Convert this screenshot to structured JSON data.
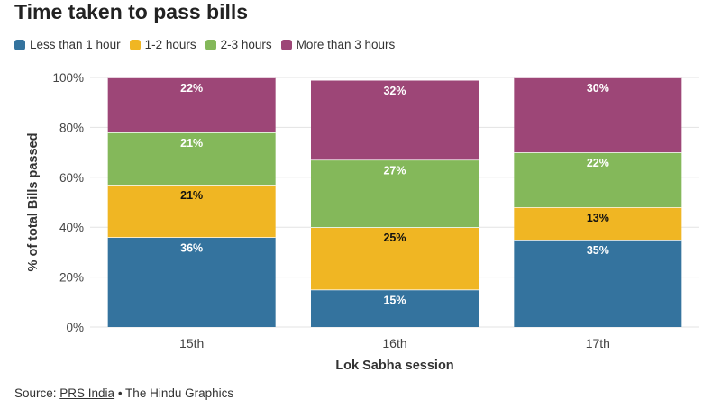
{
  "title": "Time taken to pass bills",
  "source": {
    "prefix": "Source: ",
    "link_text": "PRS India",
    "suffix": " • The Hindu Graphics"
  },
  "chart_data": {
    "type": "bar",
    "stacked": true,
    "categories": [
      "15th",
      "16th",
      "17th"
    ],
    "xlabel": "Lok Sabha session",
    "ylabel": "% of total Bills passed",
    "ylim": [
      0,
      100
    ],
    "yticks": [
      0,
      20,
      40,
      60,
      80,
      100
    ],
    "ytick_suffix": "%",
    "grid": true,
    "legend_position": "top-left",
    "series": [
      {
        "name": "Less than 1 hour",
        "color": "#34739e",
        "label_color": "#ffffff",
        "values": [
          36,
          15,
          35
        ]
      },
      {
        "name": "1-2 hours",
        "color": "#f0b623",
        "label_color": "#111111",
        "values": [
          21,
          25,
          13
        ]
      },
      {
        "name": "2-3 hours",
        "color": "#84b85a",
        "label_color": "#ffffff",
        "values": [
          21,
          27,
          22
        ]
      },
      {
        "name": "More than 3 hours",
        "color": "#9d4677",
        "label_color": "#ffffff",
        "values": [
          22,
          32,
          30
        ]
      }
    ]
  }
}
